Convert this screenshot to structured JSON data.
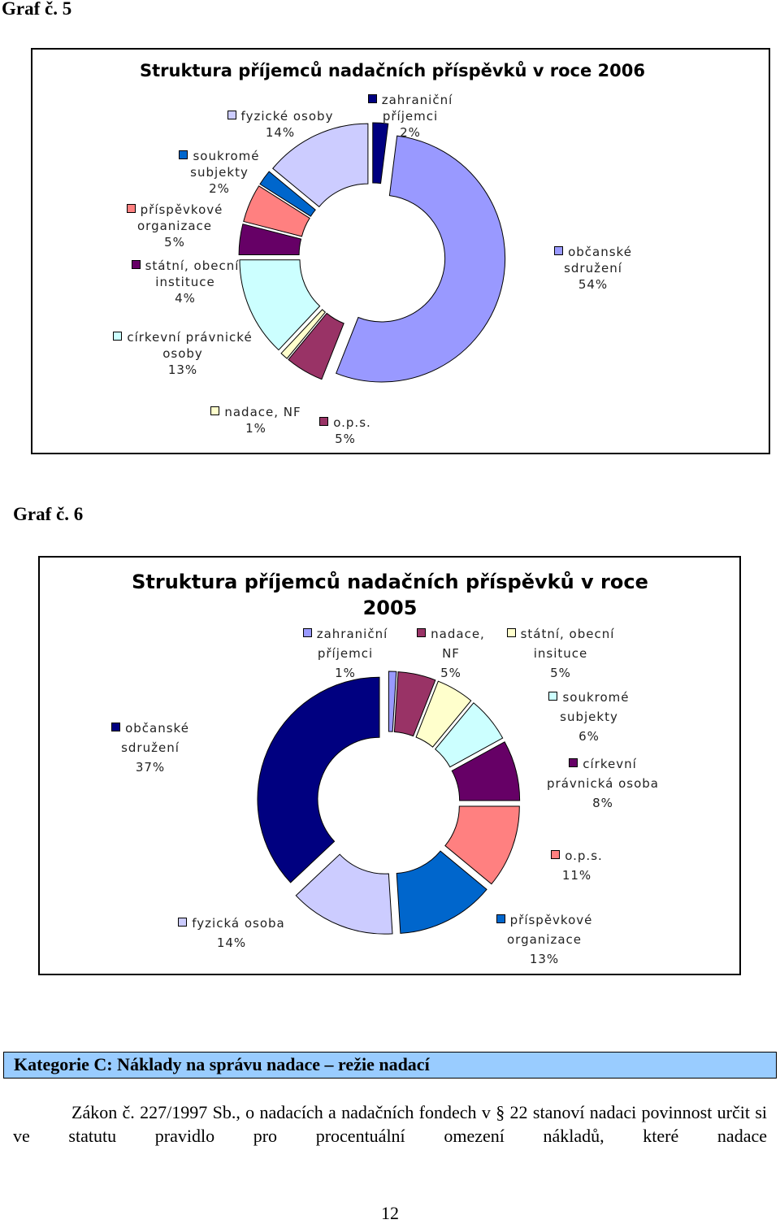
{
  "captions": [
    "Graf č. 5",
    "Graf č. 6"
  ],
  "chart_data": [
    {
      "type": "donut",
      "title": "Struktura příjemců nadačních příspěvků v roce 2006",
      "categories": [
        "zahraniční příjemci",
        "občanské sdružení",
        "o.p.s.",
        "nadace, NF",
        "církevní právnické osoby",
        "státní, obecní instituce",
        "příspěvkové organizace",
        "soukromé subjekty",
        "fyzické osoby"
      ],
      "values": [
        2,
        54,
        5,
        1,
        13,
        4,
        5,
        2,
        14
      ],
      "value_labels": [
        "2%",
        "54%",
        "5%",
        "1%",
        "13%",
        "4%",
        "5%",
        "2%",
        "14%"
      ],
      "colors": [
        "#000080",
        "#9999ff",
        "#993366",
        "#ffffcc",
        "#ccffff",
        "#660066",
        "#ff8080",
        "#0066cc",
        "#ccccff"
      ]
    },
    {
      "type": "donut",
      "title": "Struktura příjemců nadačních příspěvků v roce 2005",
      "categories": [
        "zahraniční příjemci",
        "nadace, NF",
        "státní, obecní insituce",
        "soukromé subjekty",
        "církevní právnická osoba",
        "o.p.s.",
        "příspěvkové organizace",
        "fyzická osoba",
        "občanské sdružení"
      ],
      "values": [
        1,
        5,
        5,
        6,
        8,
        11,
        13,
        14,
        37
      ],
      "value_labels": [
        "1%",
        "5%",
        "5%",
        "6%",
        "8%",
        "11%",
        "13%",
        "14%",
        "37%"
      ],
      "colors": [
        "#9999ff",
        "#993366",
        "#ffffcc",
        "#ccffff",
        "#660066",
        "#ff8080",
        "#0066cc",
        "#ccccff",
        "#000080"
      ]
    }
  ],
  "section_heading": "Kategorie C: Náklady na správu nadace – režie nadací",
  "paragraph": "Zákon č. 227/1997 Sb., o nadacích a nadačních fondech v § 22 stanoví nadaci povinnost určit si ve statutu pravidlo pro procentuální omezení nákladů, které nadace",
  "page_number": "12"
}
